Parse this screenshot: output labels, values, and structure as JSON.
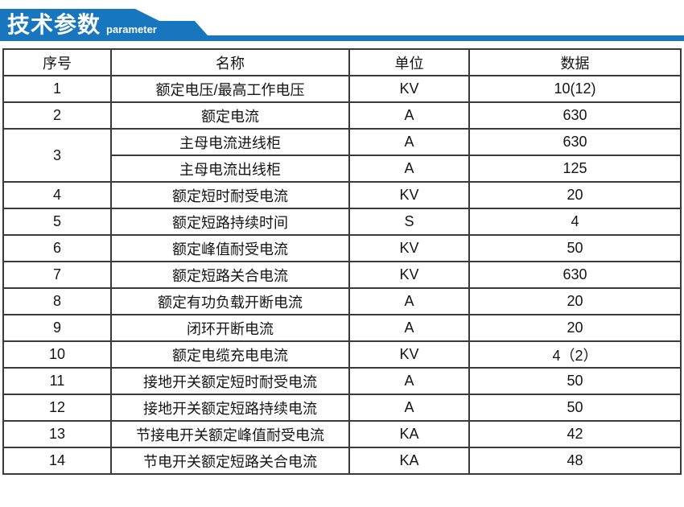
{
  "banner": {
    "title": "技术参数",
    "subtitle": "parameter",
    "accent_color": "#1776bd"
  },
  "table": {
    "headers": [
      "序号",
      "名称",
      "单位",
      "数据"
    ],
    "border_color": "#3a3a3a",
    "rows": [
      {
        "no": "1",
        "rowspan": 1,
        "name": "额定电压/最高工作电压",
        "unit": "KV",
        "value": "10(12)"
      },
      {
        "no": "2",
        "rowspan": 1,
        "name": "额定电流",
        "unit": "A",
        "value": "630"
      },
      {
        "no": "3",
        "rowspan": 2,
        "name": "主母电流进线柜",
        "unit": "A",
        "value": "630"
      },
      {
        "no": null,
        "name": "主母电流出线柜",
        "unit": "A",
        "value": "125"
      },
      {
        "no": "4",
        "rowspan": 1,
        "name": "额定短时耐受电流",
        "unit": "KV",
        "value": "20"
      },
      {
        "no": "5",
        "rowspan": 1,
        "name": "额定短路持续时间",
        "unit": "S",
        "value": "4"
      },
      {
        "no": "6",
        "rowspan": 1,
        "name": "额定峰值耐受电流",
        "unit": "KV",
        "value": "50"
      },
      {
        "no": "7",
        "rowspan": 1,
        "name": "额定短路关合电流",
        "unit": "KV",
        "value": "630"
      },
      {
        "no": "8",
        "rowspan": 1,
        "name": "额定有功负载开断电流",
        "unit": "A",
        "value": "20"
      },
      {
        "no": "9",
        "rowspan": 1,
        "name": "闭环开断电流",
        "unit": "A",
        "value": "20"
      },
      {
        "no": "10",
        "rowspan": 1,
        "name": "额定电缆充电电流",
        "unit": "KV",
        "value": "4（2）"
      },
      {
        "no": "11",
        "rowspan": 1,
        "name": "接地开关额定短时耐受电流",
        "unit": "A",
        "value": "50"
      },
      {
        "no": "12",
        "rowspan": 1,
        "name": "接地开关额定短路持续电流",
        "unit": "A",
        "value": "50"
      },
      {
        "no": "13",
        "rowspan": 1,
        "name": "节接电开关额定峰值耐受电流",
        "unit": "KA",
        "value": "42"
      },
      {
        "no": "14",
        "rowspan": 1,
        "name": "节电开关额定短路关合电流",
        "unit": "KA",
        "value": "48"
      }
    ]
  }
}
